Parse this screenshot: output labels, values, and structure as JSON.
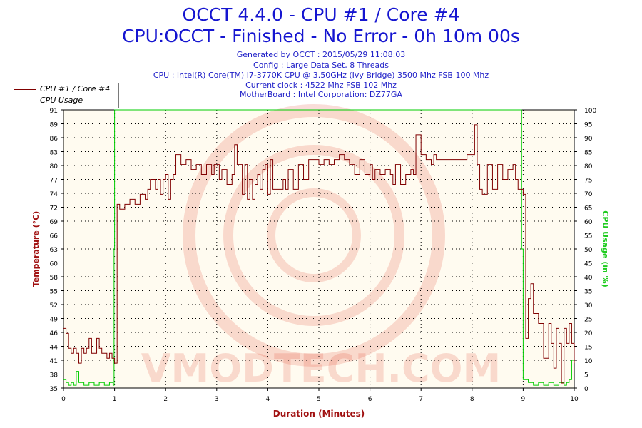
{
  "titles": {
    "main": "OCCT 4.4.0 - CPU #1 / Core #4",
    "sub": "CPU:OCCT - Finished - No Error - 0h 10m 00s"
  },
  "info_lines": [
    "Generated by OCCT : 2015/05/29 11:08:03",
    "Config : Large Data Set, 8 Threads",
    "CPU : Intel(R) Core(TM) i7-3770K CPU @ 3.50GHz (Ivy Bridge) 3500 Mhz FSB 100 Mhz",
    "Current clock : 4522 Mhz FSB 102 Mhz",
    "MotherBoard : Intel Corporation: DZ77GA"
  ],
  "watermark": "VMODTECH.COM",
  "colors": {
    "temperature": "#800000",
    "usage": "#00cc00",
    "title": "#1515d0",
    "axis_left": "#a01010",
    "axis_right": "#20cc20"
  },
  "chart_data": {
    "type": "line",
    "xlabel": "Duration (Minutes)",
    "ylabel_left": "Temperature (°C)",
    "ylabel_right": "CPU Usage (in %)",
    "xlim": [
      0,
      10
    ],
    "ylim_left": [
      35,
      91
    ],
    "ylim_right": [
      0,
      100
    ],
    "x_ticks": [
      "0",
      "1",
      "2",
      "3",
      "4",
      "5",
      "6",
      "7",
      "8",
      "9",
      "10"
    ],
    "y_ticks_left": [
      "35",
      "38",
      "41",
      "44",
      "46",
      "49",
      "52",
      "55",
      "58",
      "60",
      "63",
      "66",
      "69",
      "72",
      "74",
      "77",
      "80",
      "83",
      "86",
      "89",
      "91"
    ],
    "y_ticks_right": [
      "0",
      "5",
      "10",
      "15",
      "20",
      "25",
      "30",
      "35",
      "40",
      "45",
      "50",
      "55",
      "60",
      "65",
      "70",
      "75",
      "80",
      "85",
      "90",
      "95",
      "100"
    ],
    "grid": true,
    "legend": "top-left",
    "series": [
      {
        "name": "CPU #1 / Core #4",
        "axis": "left",
        "points": [
          [
            0,
            47
          ],
          [
            0.05,
            46
          ],
          [
            0.1,
            43
          ],
          [
            0.15,
            42
          ],
          [
            0.2,
            43
          ],
          [
            0.25,
            42
          ],
          [
            0.3,
            40
          ],
          [
            0.35,
            43
          ],
          [
            0.4,
            42
          ],
          [
            0.45,
            43
          ],
          [
            0.5,
            45
          ],
          [
            0.55,
            42
          ],
          [
            0.6,
            42
          ],
          [
            0.65,
            45
          ],
          [
            0.7,
            43
          ],
          [
            0.75,
            42
          ],
          [
            0.8,
            42
          ],
          [
            0.85,
            41
          ],
          [
            0.9,
            42
          ],
          [
            0.95,
            41
          ],
          [
            1.0,
            40
          ],
          [
            1.05,
            72
          ],
          [
            1.1,
            71
          ],
          [
            1.2,
            72
          ],
          [
            1.3,
            73
          ],
          [
            1.4,
            72
          ],
          [
            1.5,
            74
          ],
          [
            1.6,
            73
          ],
          [
            1.65,
            75
          ],
          [
            1.7,
            77
          ],
          [
            1.8,
            75
          ],
          [
            1.85,
            77
          ],
          [
            1.9,
            74
          ],
          [
            1.95,
            77
          ],
          [
            2.0,
            78
          ],
          [
            2.05,
            73
          ],
          [
            2.1,
            77
          ],
          [
            2.15,
            78
          ],
          [
            2.2,
            82
          ],
          [
            2.3,
            80
          ],
          [
            2.4,
            81
          ],
          [
            2.5,
            79
          ],
          [
            2.6,
            80
          ],
          [
            2.7,
            78
          ],
          [
            2.8,
            80
          ],
          [
            2.9,
            78
          ],
          [
            2.95,
            80
          ],
          [
            3.0,
            80
          ],
          [
            3.05,
            77
          ],
          [
            3.1,
            79
          ],
          [
            3.2,
            76
          ],
          [
            3.3,
            78
          ],
          [
            3.35,
            84
          ],
          [
            3.4,
            80
          ],
          [
            3.5,
            74
          ],
          [
            3.55,
            80
          ],
          [
            3.6,
            73
          ],
          [
            3.65,
            77
          ],
          [
            3.7,
            73
          ],
          [
            3.75,
            76
          ],
          [
            3.8,
            78
          ],
          [
            3.85,
            75
          ],
          [
            3.9,
            79
          ],
          [
            3.95,
            80
          ],
          [
            4.0,
            74
          ],
          [
            4.05,
            81
          ],
          [
            4.1,
            75
          ],
          [
            4.2,
            75
          ],
          [
            4.3,
            77
          ],
          [
            4.35,
            75
          ],
          [
            4.4,
            79
          ],
          [
            4.5,
            75
          ],
          [
            4.6,
            80
          ],
          [
            4.7,
            77
          ],
          [
            4.8,
            81
          ],
          [
            4.9,
            81
          ],
          [
            5.0,
            80
          ],
          [
            5.1,
            81
          ],
          [
            5.2,
            80
          ],
          [
            5.3,
            81
          ],
          [
            5.4,
            82
          ],
          [
            5.5,
            81
          ],
          [
            5.6,
            80
          ],
          [
            5.7,
            78
          ],
          [
            5.8,
            81
          ],
          [
            5.9,
            78
          ],
          [
            6.0,
            80
          ],
          [
            6.05,
            77
          ],
          [
            6.1,
            79
          ],
          [
            6.2,
            78
          ],
          [
            6.3,
            79
          ],
          [
            6.4,
            78
          ],
          [
            6.45,
            76
          ],
          [
            6.5,
            80
          ],
          [
            6.6,
            76
          ],
          [
            6.7,
            78
          ],
          [
            6.8,
            79
          ],
          [
            6.85,
            78
          ],
          [
            6.9,
            86
          ],
          [
            7.0,
            82
          ],
          [
            7.1,
            81
          ],
          [
            7.2,
            80
          ],
          [
            7.25,
            82
          ],
          [
            7.3,
            81
          ],
          [
            7.4,
            81
          ],
          [
            7.5,
            81
          ],
          [
            7.6,
            81
          ],
          [
            7.8,
            81
          ],
          [
            7.9,
            82
          ],
          [
            8.0,
            82
          ],
          [
            8.05,
            88
          ],
          [
            8.1,
            80
          ],
          [
            8.15,
            75
          ],
          [
            8.2,
            74
          ],
          [
            8.3,
            80
          ],
          [
            8.4,
            75
          ],
          [
            8.5,
            80
          ],
          [
            8.6,
            77
          ],
          [
            8.7,
            79
          ],
          [
            8.8,
            80
          ],
          [
            8.85,
            77
          ],
          [
            8.9,
            75
          ],
          [
            9.0,
            74
          ],
          [
            9.05,
            45
          ],
          [
            9.1,
            53
          ],
          [
            9.15,
            56
          ],
          [
            9.2,
            50
          ],
          [
            9.3,
            48
          ],
          [
            9.4,
            41
          ],
          [
            9.5,
            48
          ],
          [
            9.55,
            44
          ],
          [
            9.6,
            39
          ],
          [
            9.65,
            47
          ],
          [
            9.7,
            44
          ],
          [
            9.75,
            36
          ],
          [
            9.8,
            47
          ],
          [
            9.85,
            44
          ],
          [
            9.9,
            48
          ],
          [
            9.95,
            44
          ],
          [
            10.0,
            40
          ]
        ]
      },
      {
        "name": "CPU Usage",
        "axis": "right",
        "points": [
          [
            0,
            3
          ],
          [
            0.05,
            2
          ],
          [
            0.1,
            1
          ],
          [
            0.15,
            2
          ],
          [
            0.2,
            1
          ],
          [
            0.25,
            6
          ],
          [
            0.3,
            2
          ],
          [
            0.4,
            1
          ],
          [
            0.5,
            2
          ],
          [
            0.6,
            1
          ],
          [
            0.7,
            2
          ],
          [
            0.8,
            1
          ],
          [
            0.9,
            2
          ],
          [
            0.97,
            1
          ],
          [
            0.99,
            50
          ],
          [
            1.0,
            100
          ],
          [
            1.5,
            100
          ],
          [
            2.0,
            100
          ],
          [
            3.0,
            100
          ],
          [
            4.0,
            100
          ],
          [
            5.0,
            100
          ],
          [
            6.0,
            100
          ],
          [
            7.0,
            100
          ],
          [
            8.0,
            100
          ],
          [
            8.95,
            100
          ],
          [
            8.97,
            50
          ],
          [
            9.0,
            3
          ],
          [
            9.1,
            2
          ],
          [
            9.2,
            1
          ],
          [
            9.3,
            2
          ],
          [
            9.4,
            1
          ],
          [
            9.5,
            2
          ],
          [
            9.6,
            1
          ],
          [
            9.7,
            2
          ],
          [
            9.8,
            1
          ],
          [
            9.85,
            2
          ],
          [
            9.9,
            3
          ],
          [
            9.95,
            10
          ],
          [
            10.0,
            12
          ]
        ]
      }
    ]
  }
}
